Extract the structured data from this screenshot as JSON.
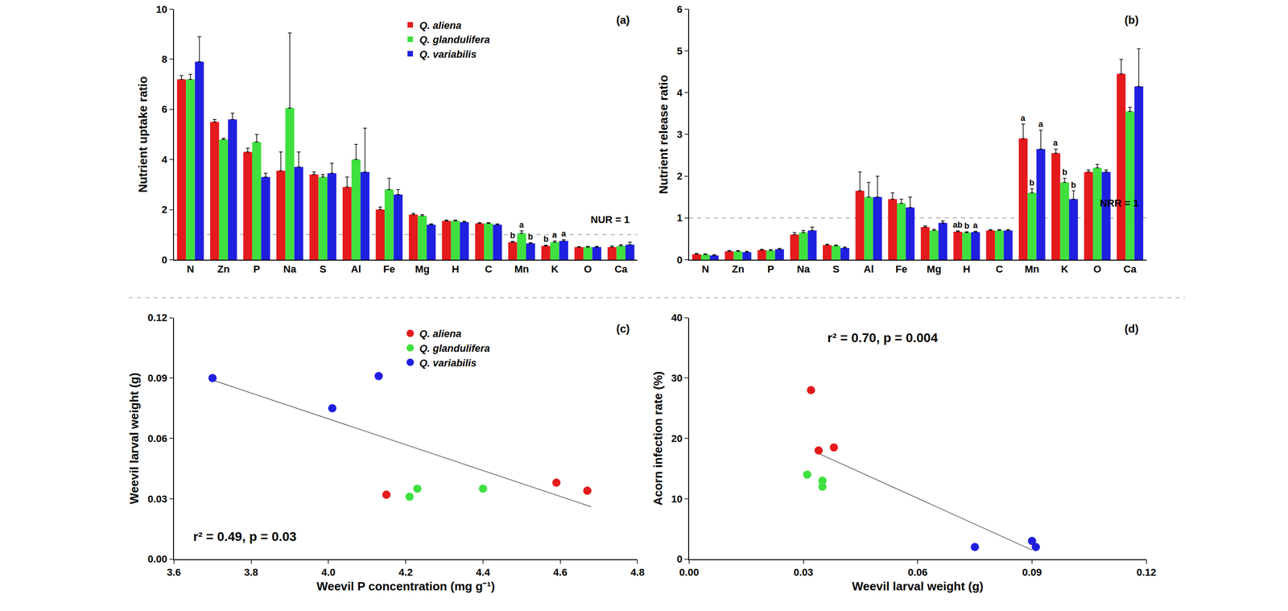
{
  "chart_data": [
    {
      "type": "bar",
      "title": "(a)",
      "y_label": "Nutrient uptake ratio",
      "categories": [
        "N",
        "Zn",
        "P",
        "Na",
        "S",
        "Al",
        "Fe",
        "Mg",
        "H",
        "C",
        "Mn",
        "K",
        "O",
        "Ca"
      ],
      "ylim": [
        0,
        10
      ],
      "yticks": [
        0,
        2,
        4,
        6,
        8,
        10
      ],
      "legend": "top",
      "hline": {
        "value": 1,
        "label": "NUR = 1"
      },
      "series": [
        {
          "name": "Q. aliena",
          "color": "#e41a1c",
          "values": [
            7.2,
            5.5,
            4.3,
            3.55,
            3.4,
            2.9,
            2.0,
            1.8,
            1.55,
            1.45,
            0.7,
            0.55,
            0.5,
            0.5
          ],
          "errors": [
            0.15,
            0.1,
            0.15,
            0.75,
            0.1,
            0.4,
            0.1,
            0.05,
            0.03,
            0.03,
            0.03,
            0.03,
            0.02,
            0.05
          ],
          "letters": [
            null,
            null,
            null,
            null,
            null,
            null,
            null,
            null,
            null,
            null,
            "b",
            "b",
            null,
            null
          ]
        },
        {
          "name": "Q. glandulifera",
          "color": "#3fe03f",
          "values": [
            7.2,
            4.8,
            4.7,
            6.05,
            3.3,
            4.0,
            2.8,
            1.75,
            1.55,
            1.45,
            1.05,
            0.7,
            0.5,
            0.55
          ],
          "errors": [
            0.2,
            0.05,
            0.3,
            3.0,
            0.1,
            0.6,
            0.45,
            0.05,
            0.03,
            0.03,
            0.1,
            0.05,
            0.03,
            0.05
          ],
          "letters": [
            null,
            null,
            null,
            null,
            null,
            null,
            null,
            null,
            null,
            null,
            "a",
            "a",
            null,
            null
          ]
        },
        {
          "name": "Q. variabilis",
          "color": "#1f1fe0",
          "values": [
            7.9,
            5.6,
            3.3,
            3.7,
            3.45,
            3.5,
            2.6,
            1.4,
            1.5,
            1.4,
            0.65,
            0.75,
            0.5,
            0.6
          ],
          "errors": [
            1.0,
            0.25,
            0.15,
            0.6,
            0.4,
            1.75,
            0.2,
            0.03,
            0.03,
            0.03,
            0.03,
            0.05,
            0.03,
            0.1
          ],
          "letters": [
            null,
            null,
            null,
            null,
            null,
            null,
            null,
            null,
            null,
            null,
            "b",
            "a",
            null,
            null
          ]
        }
      ]
    },
    {
      "type": "bar",
      "title": "(b)",
      "y_label": "Nutrient release ratio",
      "categories": [
        "N",
        "Zn",
        "P",
        "Na",
        "S",
        "Al",
        "Fe",
        "Mg",
        "H",
        "C",
        "Mn",
        "K",
        "O",
        "Ca"
      ],
      "ylim": [
        0,
        6
      ],
      "yticks": [
        0,
        1,
        2,
        3,
        4,
        5,
        6
      ],
      "hline": {
        "value": 1,
        "label": "NRR = 1"
      },
      "series": [
        {
          "color": "#e41a1c",
          "values": [
            0.13,
            0.2,
            0.23,
            0.6,
            0.35,
            1.65,
            1.45,
            0.78,
            0.67,
            0.7,
            2.9,
            2.55,
            2.1,
            4.45
          ],
          "errors": [
            0.02,
            0.02,
            0.02,
            0.05,
            0.02,
            0.45,
            0.15,
            0.03,
            0.02,
            0.02,
            0.35,
            0.1,
            0.05,
            0.35
          ],
          "letters": [
            null,
            null,
            null,
            null,
            null,
            null,
            null,
            null,
            "ab",
            null,
            "a",
            "a",
            null,
            null
          ]
        },
        {
          "color": "#3fe03f",
          "values": [
            0.12,
            0.2,
            0.22,
            0.65,
            0.33,
            1.5,
            1.35,
            0.7,
            0.65,
            0.7,
            1.6,
            1.85,
            2.2,
            3.55
          ],
          "errors": [
            0.02,
            0.02,
            0.02,
            0.05,
            0.02,
            0.35,
            0.1,
            0.03,
            0.02,
            0.02,
            0.1,
            0.1,
            0.08,
            0.1
          ],
          "letters": [
            null,
            null,
            null,
            null,
            null,
            null,
            null,
            null,
            "b",
            null,
            "b",
            "b",
            null,
            null
          ]
        },
        {
          "color": "#1f1fe0",
          "values": [
            0.1,
            0.18,
            0.25,
            0.7,
            0.28,
            1.5,
            1.25,
            0.88,
            0.66,
            0.7,
            2.65,
            1.45,
            2.1,
            4.15
          ],
          "errors": [
            0.02,
            0.02,
            0.02,
            0.08,
            0.02,
            0.5,
            0.25,
            0.05,
            0.02,
            0.02,
            0.45,
            0.2,
            0.05,
            0.9
          ],
          "letters": [
            null,
            null,
            null,
            null,
            null,
            null,
            null,
            null,
            "a",
            null,
            "a",
            "b",
            null,
            null
          ]
        }
      ]
    },
    {
      "type": "scatter",
      "title": "(c)",
      "x_label": "Weevil P concentration (mg g⁻¹)",
      "y_label": "Weevil larval weight (g)",
      "xlim": [
        3.6,
        4.8
      ],
      "xticks": [
        3.6,
        3.8,
        {
          "value": 4,
          "label": "4.0"
        },
        4.2,
        4.4,
        4.6,
        4.8
      ],
      "ylim": [
        0,
        0.12
      ],
      "yticks": [
        {
          "value": 0,
          "label": "0.00"
        },
        0.03,
        0.06,
        0.09,
        0.12
      ],
      "legend": "top",
      "annotations": [
        {
          "text": "r² = 0.49, p = 0.03"
        }
      ],
      "series": [
        {
          "type": "line",
          "color": "#555555",
          "x": [
            3.7,
            4.68
          ],
          "values": [
            0.089,
            0.026
          ]
        },
        {
          "name": "Q. aliena",
          "color": "#e41a1c",
          "x": [
            4.15,
            4.59,
            4.67
          ],
          "values": [
            0.032,
            0.038,
            0.034
          ]
        },
        {
          "name": "Q. glandulifera",
          "color": "#3fe03f",
          "x": [
            4.21,
            4.23,
            4.4
          ],
          "values": [
            0.031,
            0.035,
            0.035
          ]
        },
        {
          "name": "Q. variabilis",
          "color": "#1f1fe0",
          "x": [
            3.7,
            4.01,
            4.13
          ],
          "values": [
            0.09,
            0.075,
            0.091
          ]
        }
      ]
    },
    {
      "type": "scatter",
      "title": "(d)",
      "x_label": "Weevil larval weight (g)",
      "y_label": "Acorn infection rate (%)",
      "xlim": [
        0,
        0.12
      ],
      "xticks": [
        {
          "value": 0,
          "label": "0.00"
        },
        0.03,
        0.06,
        0.09,
        0.12
      ],
      "ylim": [
        0,
        40
      ],
      "yticks": [
        0,
        10,
        20,
        30,
        40
      ],
      "annotations": [
        {
          "text": "r² = 0.70, p = 0.004"
        }
      ],
      "series": [
        {
          "type": "line",
          "color": "#555555",
          "x": [
            0.034,
            0.09
          ],
          "values": [
            17.5,
            1.5
          ]
        },
        {
          "color": "#e41a1c",
          "x": [
            0.032,
            0.034,
            0.038
          ],
          "values": [
            28,
            18,
            18.5
          ]
        },
        {
          "color": "#3fe03f",
          "x": [
            0.031,
            0.035,
            0.035
          ],
          "values": [
            14,
            13,
            12
          ]
        },
        {
          "color": "#1f1fe0",
          "x": [
            0.075,
            0.09,
            0.091
          ],
          "values": [
            2,
            3,
            2
          ]
        }
      ]
    }
  ]
}
